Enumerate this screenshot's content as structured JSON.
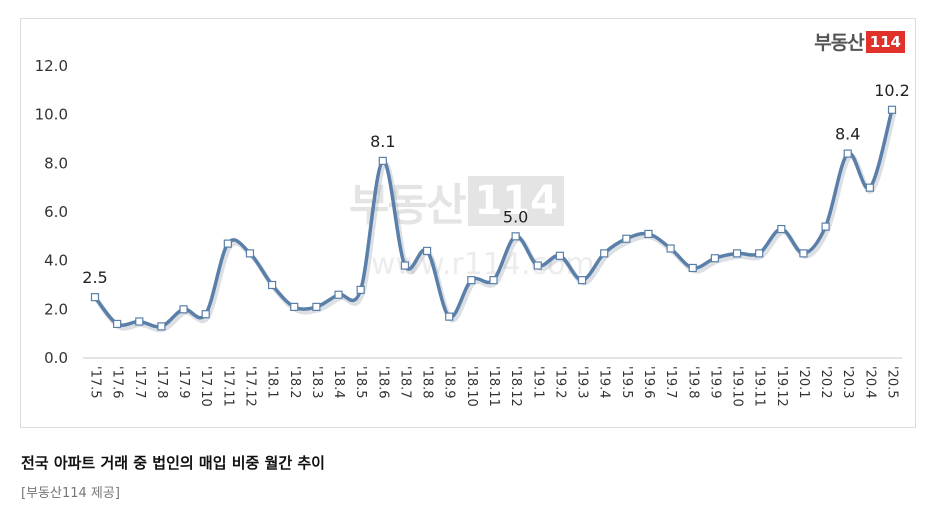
{
  "brand": {
    "text": "부동산",
    "num": "114"
  },
  "watermark": {
    "text": "부동산",
    "num": "114",
    "url": "www.r114.com"
  },
  "caption": {
    "title": "전국 아파트 거래 중 법인의 매입 비중 월간 추이",
    "source": "[부동산114 제공]"
  },
  "chart_data": {
    "type": "line",
    "title": "",
    "xlabel": "",
    "ylabel": "",
    "ylim": [
      0,
      12
    ],
    "yticks": [
      "0.0",
      "2.0",
      "4.0",
      "6.0",
      "8.0",
      "10.0",
      "12.0"
    ],
    "grid": false,
    "line_color": "#5a7fa8",
    "categories": [
      "'17.5",
      "'17.6",
      "'17.7",
      "'17.8",
      "'17.9",
      "'17.10",
      "'17.11",
      "'17.12",
      "'18.1",
      "'18.2",
      "'18.3",
      "'18.4",
      "'18.5",
      "'18.6",
      "'18.7",
      "'18.8",
      "'18.9",
      "'18.10",
      "'18.11",
      "'18.12",
      "'19.1",
      "'19.2",
      "'19.3",
      "'19.4",
      "'19.5",
      "'19.6",
      "'19.7",
      "'19.8",
      "'19.9",
      "'19.10",
      "'19.11",
      "'19.12",
      "'20.1",
      "'20.2",
      "'20.3",
      "'20.4",
      "'20.5"
    ],
    "values": [
      2.5,
      1.4,
      1.5,
      1.3,
      2.0,
      1.8,
      4.7,
      4.3,
      3.0,
      2.1,
      2.1,
      2.6,
      2.8,
      8.1,
      3.8,
      4.4,
      1.7,
      3.2,
      3.2,
      5.0,
      3.8,
      4.2,
      3.2,
      4.3,
      4.9,
      5.1,
      4.5,
      3.7,
      4.1,
      4.3,
      4.3,
      5.3,
      4.3,
      5.4,
      8.4,
      7.0,
      10.2
    ],
    "data_labels": [
      {
        "index": 0,
        "text": "2.5"
      },
      {
        "index": 13,
        "text": "8.1"
      },
      {
        "index": 19,
        "text": "5.0"
      },
      {
        "index": 34,
        "text": "8.4"
      },
      {
        "index": 36,
        "text": "10.2"
      }
    ]
  }
}
